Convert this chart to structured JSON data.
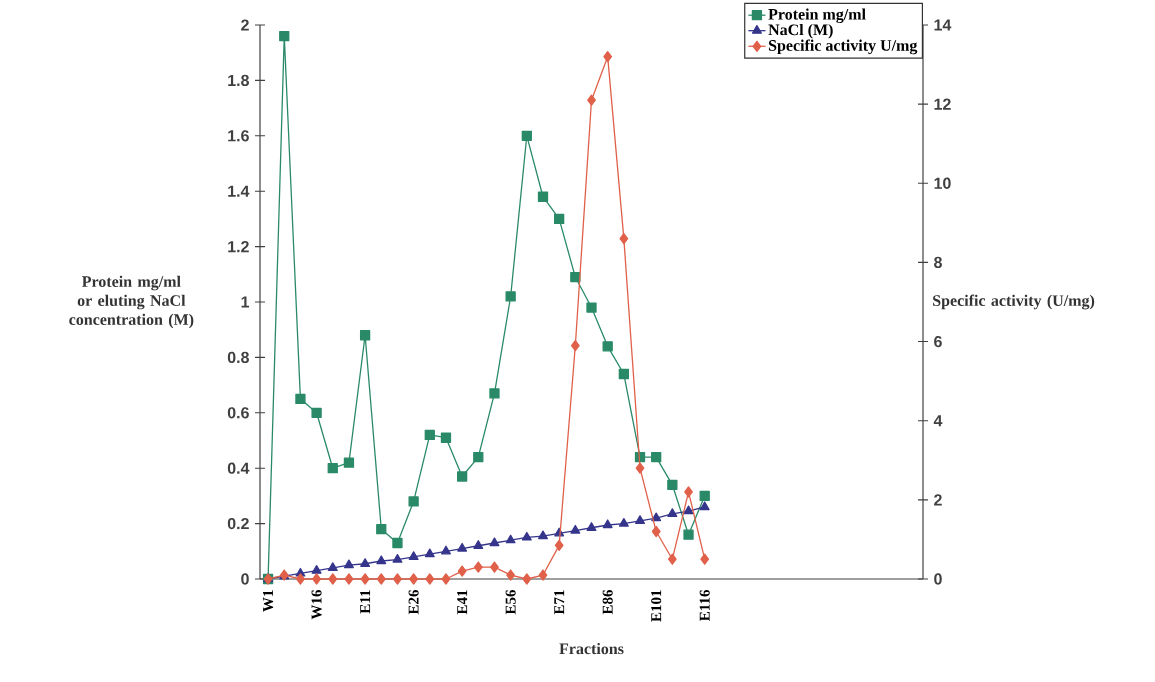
{
  "chart_data": {
    "type": "line",
    "xlabel": "Fractions",
    "ylabel": "Protein mg/ml or eluting NaCl concentration (M)",
    "y2label": "Specific activity (U/mg)",
    "categories": [
      "W1",
      null,
      null,
      "W16",
      null,
      null,
      "E11",
      null,
      null,
      "E26",
      null,
      null,
      "E41",
      null,
      null,
      "E56",
      null,
      null,
      "E71",
      null,
      null,
      "E86",
      null,
      null,
      "E101",
      null,
      null,
      "E116",
      null,
      null,
      null,
      null,
      null,
      null,
      null,
      null,
      null,
      null,
      null,
      null,
      null
    ],
    "ylim": [
      0,
      2
    ],
    "yticks": [
      0,
      0.2,
      0.4,
      0.6,
      0.8,
      1,
      1.2,
      1.4,
      1.6,
      1.8,
      2
    ],
    "y2lim": [
      0,
      14
    ],
    "y2ticks": [
      0,
      2,
      4,
      6,
      8,
      10,
      12,
      14
    ],
    "legend": "top right",
    "series": [
      {
        "name": "Protein mg/ml",
        "color": "#2a8a68",
        "marker": "square",
        "values": [
          0,
          1.96,
          0.65,
          0.6,
          0.4,
          0.42,
          0.88,
          0.18,
          0.13,
          0.28,
          0.52,
          0.51,
          0.37,
          0.44,
          0.67,
          1.02,
          1.6,
          1.38,
          1.3,
          1.09,
          0.98,
          0.84,
          0.74,
          0.44,
          0.44,
          0.34,
          0.16,
          0.3,
          null,
          null,
          null,
          null,
          null,
          null,
          null,
          null,
          null,
          null,
          null,
          null,
          null
        ]
      },
      {
        "name": "NaCl (M)",
        "color": "#35358c",
        "marker": "triangle",
        "values": [
          0,
          0.01,
          0.02,
          0.03,
          0.04,
          0.05,
          0.055,
          0.065,
          0.07,
          0.08,
          0.09,
          0.1,
          0.11,
          0.12,
          0.13,
          0.14,
          0.15,
          0.155,
          0.165,
          0.175,
          0.185,
          0.195,
          0.2,
          0.21,
          0.22,
          0.235,
          0.245,
          0.26,
          null,
          null,
          null,
          null,
          null,
          null,
          null,
          null,
          null,
          null,
          null,
          null,
          null
        ]
      },
      {
        "name": "Specific activity U/mg",
        "color": "#e0604a",
        "marker": "diamond",
        "axis": "y2",
        "values": [
          0,
          0.1,
          0,
          0,
          0,
          0,
          0,
          0,
          0,
          0,
          0,
          0,
          0.2,
          0.3,
          0.3,
          0.1,
          0,
          0.1,
          0.85,
          5.9,
          12.1,
          13.2,
          8.6,
          2.8,
          1.2,
          0.5,
          2.2,
          0.5,
          null,
          null,
          null,
          null,
          null,
          null,
          null,
          null,
          null,
          null,
          null,
          null,
          null
        ]
      }
    ]
  }
}
